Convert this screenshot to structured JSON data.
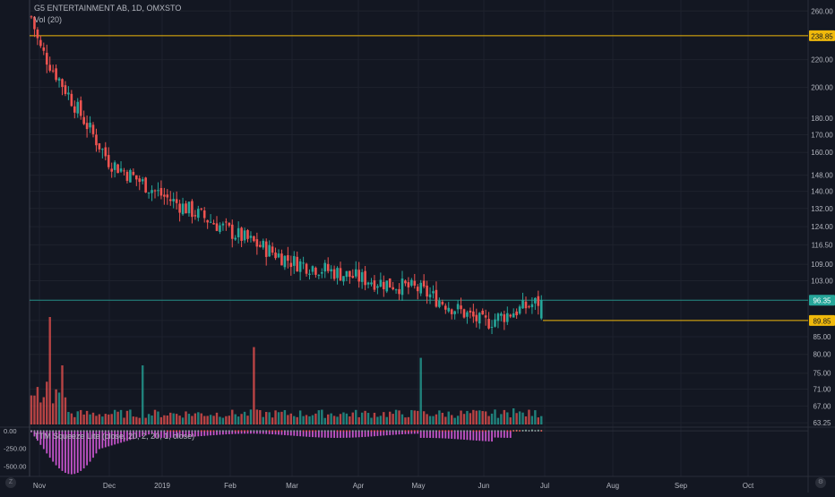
{
  "header": {
    "symbol_line": "G5 ENTERTAINMENT AB, 1D, OMXSTO",
    "volume_label": "Vol (20)",
    "indicator_label": "TTM Squeeze Lite (close, 20, 2, 20, 1, close)"
  },
  "colors": {
    "background": "#131722",
    "up": "#26a69a",
    "down": "#ef5350",
    "level_line": "#f0b90b",
    "last_price": "#26a69a",
    "squeeze_neg": "#e45ee8",
    "squeeze_pos": "#7ed6a8"
  },
  "chart_data": [
    {
      "type": "candlestick",
      "price_scale": "log",
      "x_ticks": [
        "Nov",
        "Dec",
        "2019",
        "Feb",
        "Mar",
        "Apr",
        "May",
        "Jun",
        "Jul",
        "Aug",
        "Sep",
        "Oct"
      ],
      "y_ticks": [
        "260.00",
        "220.00",
        "200.00",
        "180.00",
        "170.00",
        "160.00",
        "148.00",
        "140.00",
        "132.00",
        "124.00",
        "116.50",
        "109.00",
        "103.00",
        "96.35",
        "89.85",
        "85.00",
        "80.00",
        "75.00",
        "71.00",
        "67.00",
        "63.25"
      ],
      "ylim": [
        62.5,
        270
      ],
      "levels": [
        {
          "label": "238.85",
          "value": 238.85
        },
        {
          "label": "89.85",
          "value": 89.85
        }
      ],
      "last_price": {
        "label": "96.35",
        "value": 96.35
      },
      "monthly_path": [
        {
          "month": "Nov",
          "price": 230
        },
        {
          "month": "Dec",
          "price": 155
        },
        {
          "month": "2019",
          "price": 138
        },
        {
          "month": "Feb",
          "price": 122
        },
        {
          "month": "Mar",
          "price": 110
        },
        {
          "month": "Apr",
          "price": 104
        },
        {
          "month": "May",
          "price": 100
        },
        {
          "month": "Jun",
          "price": 89
        }
      ]
    },
    {
      "type": "bar",
      "name": "Vol (20)",
      "description_of_values": "relative daily volume, 0-1"
    },
    {
      "type": "histogram",
      "y_ticks": [
        "0.00",
        "-250.00",
        "-500.00"
      ],
      "ylim": [
        -650,
        40
      ]
    }
  ],
  "corner_buttons": {
    "left": "Z",
    "right": "⚙"
  }
}
